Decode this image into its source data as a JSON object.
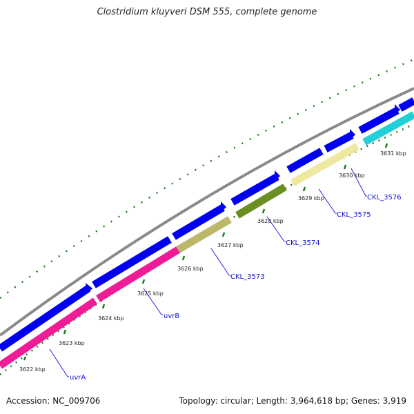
{
  "title": "Clostridium kluyveri DSM 555, complete genome",
  "footer": {
    "accession": "Accession: NC_009706",
    "summary": "Topology: circular; Length: 3,964,618 bp; Genes: 3,919"
  },
  "colors": {
    "backbone": "#8a8a8a",
    "cds": "#0000ee",
    "tick": "#1a7a1a",
    "label_line": "#2222dd"
  },
  "scale_ticks": [
    "3622 kbp",
    "3623 kbp",
    "3624 kbp",
    "3625 kbp",
    "3626 kbp",
    "3627 kbp",
    "3628 kbp",
    "3629 kbp",
    "3630 kbp",
    "3631 kbp"
  ],
  "gene_labels": [
    "uvrA",
    "uvrB",
    "CKL_3573",
    "CKL_3574",
    "CKL_3575",
    "CKL_3576"
  ],
  "feature_colors": [
    "#ee1c96",
    "#bdb76b",
    "#6b8e23",
    "#eee8a0",
    "#22d0d8"
  ]
}
